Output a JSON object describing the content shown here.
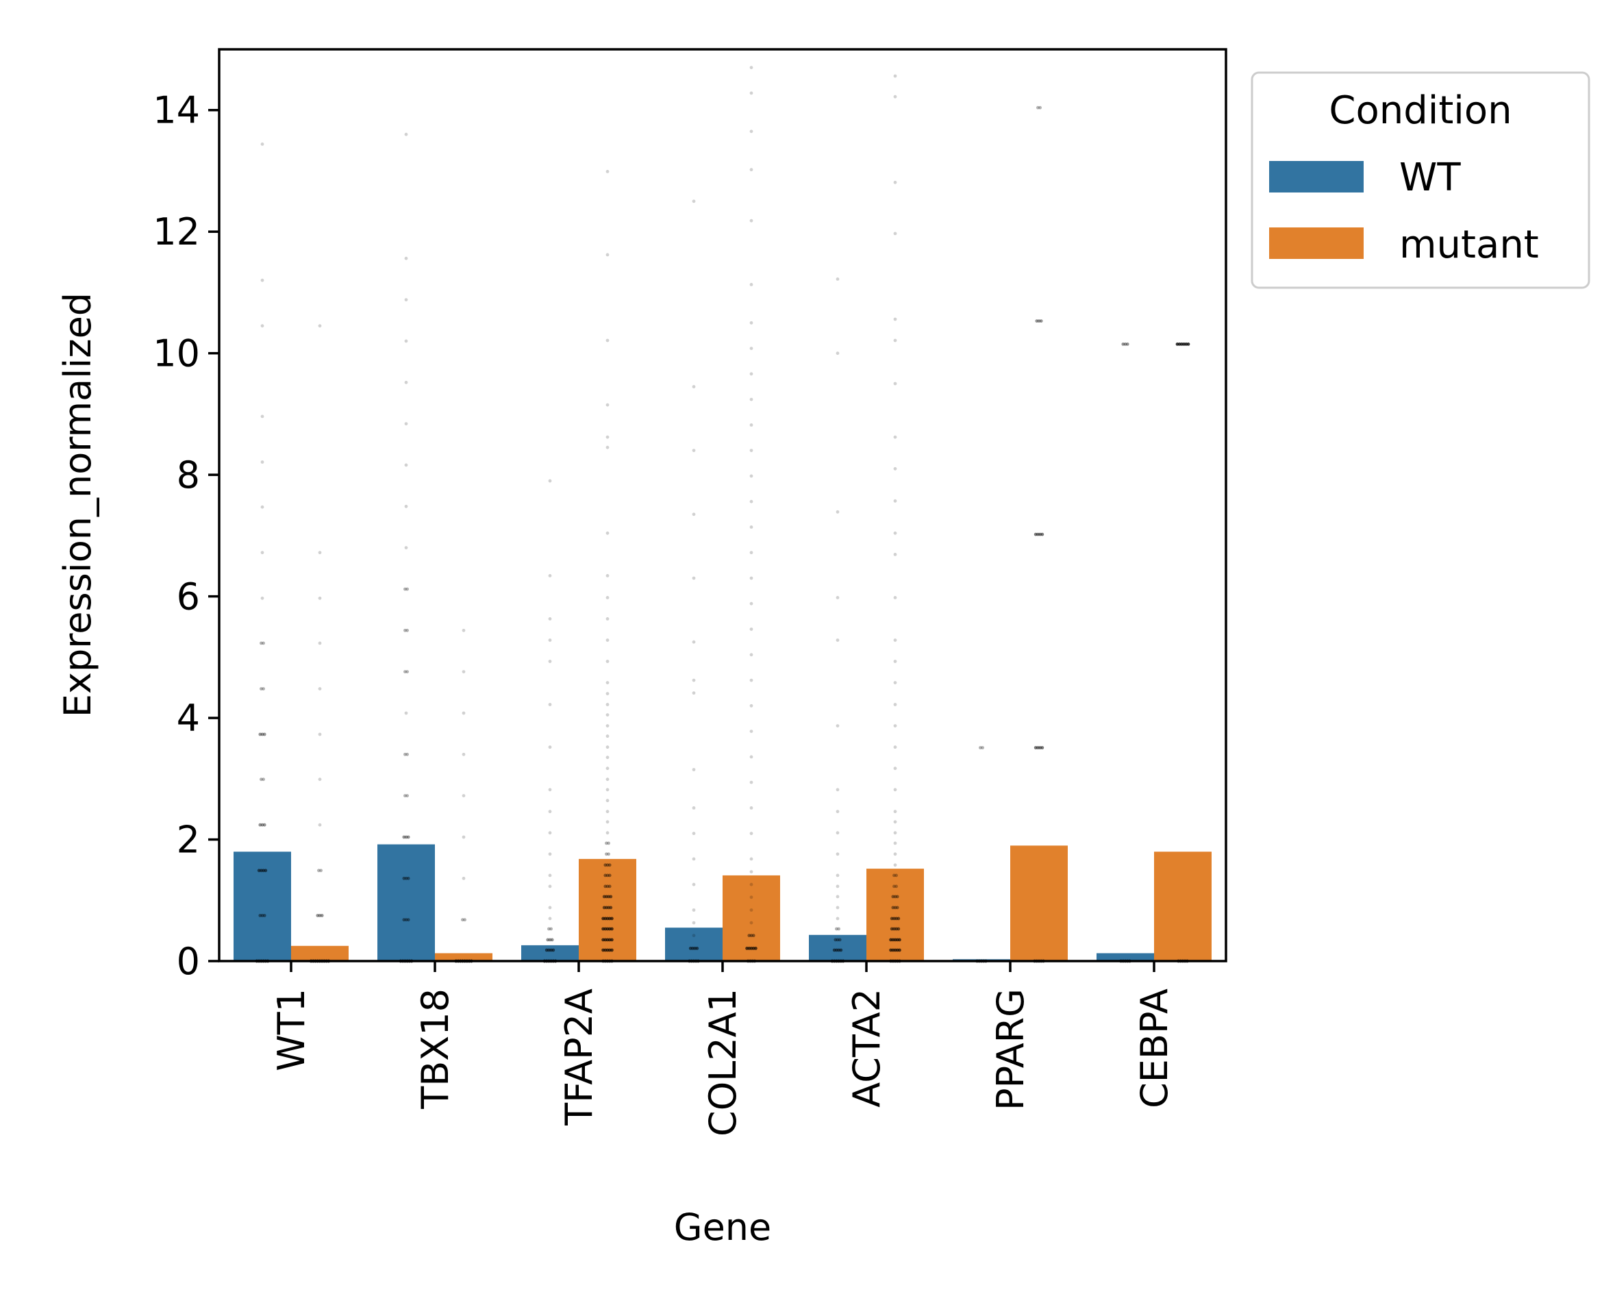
{
  "chart_data": {
    "type": "bar",
    "title": "",
    "xlabel": "Gene",
    "ylabel": "Expression_normalized",
    "categories": [
      "WT1",
      "TBX18",
      "TFAP2A",
      "COL2A1",
      "ACTA2",
      "PPARG",
      "CEBPA"
    ],
    "series": [
      {
        "name": "WT",
        "color": "#3274a1",
        "values": [
          1.8,
          1.92,
          0.26,
          0.55,
          0.43,
          0.03,
          0.13
        ]
      },
      {
        "name": "mutant",
        "color": "#e1812c",
        "values": [
          0.25,
          0.13,
          1.68,
          1.41,
          1.52,
          1.9,
          1.8
        ]
      }
    ],
    "ylim": [
      0,
      15
    ],
    "yticks": [
      0,
      2,
      4,
      6,
      8,
      10,
      12,
      14
    ],
    "grid": false,
    "legend": {
      "title": "Condition",
      "placement": "outside-top-right"
    },
    "strip_points": {
      "color": "#000000",
      "values": [
        [
          [
            0,
            0,
            0,
            0,
            0,
            0,
            0.75,
            0.75,
            0.75,
            1.49,
            1.49,
            1.49,
            1.49,
            2.24,
            2.24,
            2.24,
            2.99,
            2.99,
            3.73,
            3.73,
            3.73,
            4.48,
            4.48,
            5.23,
            5.23,
            5.97,
            6.72,
            7.47,
            8.21,
            8.96,
            10.45,
            11.2,
            13.44
          ],
          [
            0,
            0,
            0,
            0,
            0,
            0,
            0,
            0,
            0,
            0.75,
            0.75,
            0.75,
            1.49,
            1.49,
            2.24,
            2.99,
            3.73,
            4.48,
            5.23,
            5.97,
            6.72,
            10.45
          ]
        ],
        [
          [
            0,
            0,
            0,
            0,
            0,
            0,
            0.68,
            0.68,
            0.68,
            1.36,
            1.36,
            1.36,
            2.04,
            2.04,
            2.04,
            2.72,
            2.72,
            3.4,
            3.4,
            4.08,
            4.76,
            4.76,
            5.44,
            5.44,
            6.12,
            6.12,
            6.8,
            7.48,
            8.16,
            8.84,
            9.52,
            10.2,
            10.88,
            11.56,
            13.6
          ],
          [
            0,
            0,
            0,
            0,
            0,
            0,
            0,
            0,
            0.68,
            0.68,
            1.36,
            2.04,
            2.72,
            3.4,
            4.08,
            4.76,
            5.44
          ]
        ],
        [
          [
            0,
            0,
            0,
            0,
            0,
            0,
            0.18,
            0.18,
            0.18,
            0.18,
            0.35,
            0.35,
            0.35,
            0.53,
            0.53,
            0.7,
            0.88,
            1.23,
            1.41,
            1.76,
            2.11,
            2.46,
            2.82,
            3.52,
            4.22,
            4.93,
            5.28,
            5.63,
            6.34,
            7.9
          ],
          [
            0,
            0,
            0,
            0,
            0,
            0.18,
            0.18,
            0.18,
            0.18,
            0.18,
            0.35,
            0.35,
            0.35,
            0.35,
            0.35,
            0.53,
            0.53,
            0.53,
            0.53,
            0.53,
            0.7,
            0.7,
            0.7,
            0.7,
            0.7,
            0.88,
            0.88,
            0.88,
            0.88,
            1.06,
            1.06,
            1.06,
            1.06,
            1.23,
            1.23,
            1.23,
            1.41,
            1.41,
            1.41,
            1.58,
            1.58,
            1.58,
            1.76,
            1.76,
            1.94,
            1.94,
            2.11,
            2.29,
            2.46,
            2.64,
            2.82,
            2.99,
            3.17,
            3.35,
            3.52,
            3.7,
            3.87,
            4.05,
            4.22,
            4.4,
            4.58,
            4.93,
            5.28,
            5.63,
            5.98,
            6.34,
            7.04,
            8.45,
            8.62,
            9.15,
            10.21,
            11.62,
            12.99
          ]
        ],
        [
          [
            0,
            0,
            0,
            0,
            0,
            0.21,
            0.21,
            0.21,
            0.21,
            0.42,
            0.63,
            0.84,
            1.26,
            1.68,
            2.1,
            2.52,
            3.15,
            4.41,
            4.62,
            5.25,
            6.3,
            7.35,
            8.4,
            9.45,
            12.5
          ],
          [
            0,
            0,
            0,
            0,
            0.21,
            0.21,
            0.21,
            0.21,
            0.21,
            0.42,
            0.42,
            0.42,
            0.63,
            0.84,
            1.05,
            1.26,
            1.47,
            1.68,
            2.1,
            2.52,
            2.94,
            3.36,
            3.78,
            4.2,
            4.62,
            5.04,
            5.46,
            5.88,
            6.3,
            6.72,
            7.14,
            7.56,
            7.98,
            8.4,
            8.82,
            9.24,
            9.66,
            10.08,
            10.5,
            11.13,
            12.18,
            13.02,
            13.65,
            14.28,
            14.7
          ]
        ],
        [
          [
            0,
            0,
            0,
            0,
            0,
            0,
            0.18,
            0.18,
            0.18,
            0.18,
            0.35,
            0.35,
            0.35,
            0.53,
            0.53,
            0.7,
            0.88,
            1.06,
            1.23,
            1.41,
            1.76,
            2.11,
            2.46,
            2.82,
            3.87,
            5.28,
            5.98,
            7.39,
            10.0,
            11.22
          ],
          [
            0,
            0,
            0,
            0,
            0,
            0.18,
            0.18,
            0.18,
            0.18,
            0.18,
            0.35,
            0.35,
            0.35,
            0.35,
            0.35,
            0.53,
            0.53,
            0.53,
            0.53,
            0.7,
            0.7,
            0.7,
            0.7,
            0.88,
            0.88,
            0.88,
            1.06,
            1.06,
            1.06,
            1.23,
            1.23,
            1.41,
            1.41,
            1.58,
            1.76,
            1.94,
            2.11,
            2.29,
            2.46,
            2.82,
            3.17,
            3.52,
            3.87,
            4.22,
            4.58,
            4.93,
            5.28,
            5.98,
            6.69,
            7.04,
            7.57,
            8.1,
            8.62,
            9.5,
            10.21,
            10.56,
            11.97,
            12.81,
            14.22,
            14.56
          ]
        ],
        [
          [
            0,
            0,
            0,
            0,
            0,
            3.51,
            3.51
          ],
          [
            0,
            0,
            0,
            0,
            0,
            3.51,
            3.51,
            3.51,
            3.51,
            7.02,
            7.02,
            7.02,
            7.02,
            10.53,
            10.53,
            10.53,
            14.04,
            14.04
          ]
        ],
        [
          [
            0,
            0,
            0,
            0,
            0,
            10.15,
            10.15,
            10.15
          ],
          [
            0,
            0,
            0,
            0,
            0,
            10.15,
            10.15,
            10.15,
            10.15,
            10.15,
            10.15
          ]
        ]
      ]
    }
  }
}
